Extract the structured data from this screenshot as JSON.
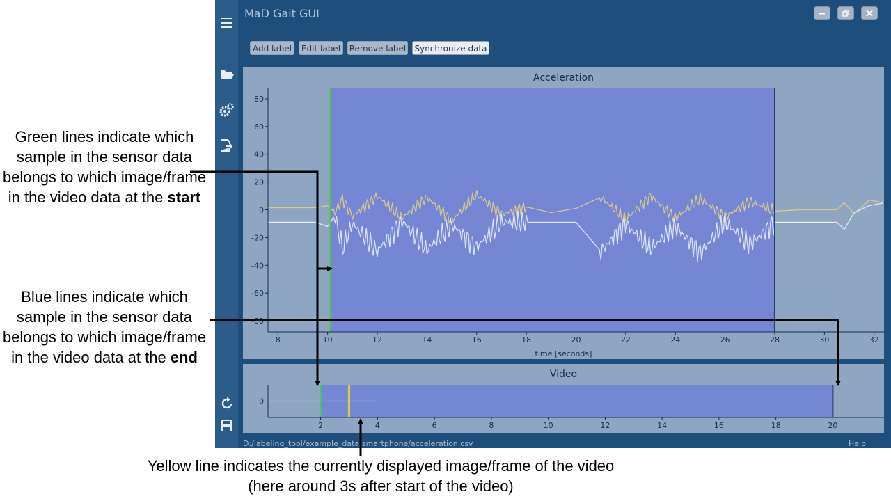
{
  "window": {
    "title": "MaD Gait GUI",
    "controls": [
      "minimize",
      "restore",
      "close"
    ]
  },
  "sidebar": {
    "icons": [
      "hamburger-menu-icon",
      "folder-open-icon",
      "settings-gears-icon",
      "export-icon",
      "refresh-icon",
      "save-icon"
    ]
  },
  "toolbar": {
    "add_label": "Add label",
    "edit_label": "Edit label",
    "remove_label": "Remove label",
    "synchronize_data": "Synchronize data",
    "active": "synchronize_data"
  },
  "acceleration_plot": {
    "title": "Acceleration",
    "xlabel": "time [seconds]"
  },
  "video_plot": {
    "title": "Video"
  },
  "status": {
    "path": "D:/labeling_tool/example_data/smartphone/acceleration.csv",
    "help": "Help"
  },
  "annotations": {
    "green_lines": {
      "text": "Green lines indicate which sample in the sensor data belongs to which image/frame in the video data at the ",
      "bold": "start"
    },
    "blue_lines": {
      "text": "Blue lines indicate which sample in the sensor data belongs to which image/frame in the video data at the ",
      "bold": "end"
    },
    "yellow_line": {
      "line1": "Yellow line indicates the currently displayed image/frame of the video",
      "line2": "(here around 3s after start of the video)"
    }
  },
  "colors": {
    "app_bg": "#1e4f7c",
    "panel_bg": "#8fa6c3",
    "sync_region": "#7586d4",
    "green_line": "#4ec94e",
    "blue_line": "#1a3d6b",
    "yellow_line": "#e6c93c",
    "accel_series_1": "#e4cd86",
    "accel_series_2": "#ffffff"
  },
  "chart_data": [
    {
      "type": "line",
      "title": "Acceleration",
      "xlabel": "time [seconds]",
      "ylabel": "",
      "xlim": [
        7.6,
        32.4
      ],
      "ylim": [
        -88,
        88
      ],
      "x_ticks": [
        8,
        10,
        12,
        14,
        16,
        18,
        20,
        22,
        24,
        26,
        28,
        30,
        32
      ],
      "y_ticks": [
        80,
        60,
        40,
        20,
        0,
        -20,
        -40,
        -60,
        -80
      ],
      "sync_region": {
        "start": 10.1,
        "end": 28.0
      },
      "green_line_x": 10.1,
      "blue_line_x": 28.0,
      "series": [
        {
          "color": "#e4cd86",
          "baseline": 1.5,
          "x": [
            7.6,
            9.5,
            10.0,
            10.3,
            10.6,
            11.0,
            12.0,
            13.0,
            14.0,
            15.0,
            16.0,
            17.0,
            18.0,
            19.0,
            20.0,
            21.0,
            22.0,
            23.0,
            24.0,
            25.0,
            26.0,
            27.0,
            28.0,
            29.0,
            30.5,
            30.8,
            31.2,
            31.8,
            32.4
          ],
          "y": [
            1.5,
            1.5,
            3,
            -2,
            8,
            -5,
            10,
            -6,
            9,
            -8,
            11,
            -3,
            2,
            -2,
            1,
            9,
            -7,
            10,
            -6,
            8,
            -5,
            6,
            -1,
            0,
            0,
            5,
            -3,
            7,
            5
          ]
        },
        {
          "color": "#ffffff",
          "baseline": -9,
          "x": [
            7.6,
            9.5,
            10.0,
            10.3,
            10.6,
            11.0,
            12.0,
            13.0,
            14.0,
            15.0,
            16.0,
            17.0,
            18.0,
            19.0,
            20.0,
            21.0,
            22.0,
            23.0,
            24.0,
            25.0,
            26.0,
            27.0,
            28.0,
            29.0,
            30.5,
            30.8,
            31.2,
            31.8,
            32.4
          ],
          "y": [
            -9,
            -9,
            -12,
            -5,
            -28,
            -10,
            -30,
            -8,
            -29,
            -11,
            -27,
            -9,
            -9,
            -9,
            -9,
            -30,
            -10,
            -28,
            -12,
            -31,
            -9,
            -25,
            -9,
            -9,
            -9,
            -14,
            -2,
            3,
            5
          ]
        }
      ]
    },
    {
      "type": "line",
      "title": "Video",
      "xlabel": "",
      "ylabel": "",
      "xlim": [
        0.15,
        21.8
      ],
      "ylim": [
        -1,
        1
      ],
      "x_ticks": [
        2,
        4,
        6,
        8,
        10,
        12,
        14,
        16,
        18,
        20
      ],
      "y_ticks": [
        0
      ],
      "sync_region": {
        "start": 2.0,
        "end": 20.0
      },
      "green_line_x": 2.0,
      "blue_line_x": 20.0,
      "yellow_line_x": 3.0,
      "series": [
        {
          "color": "#c9d2e6",
          "x": [
            0.15,
            4.0
          ],
          "y": [
            0,
            0
          ]
        }
      ]
    }
  ]
}
